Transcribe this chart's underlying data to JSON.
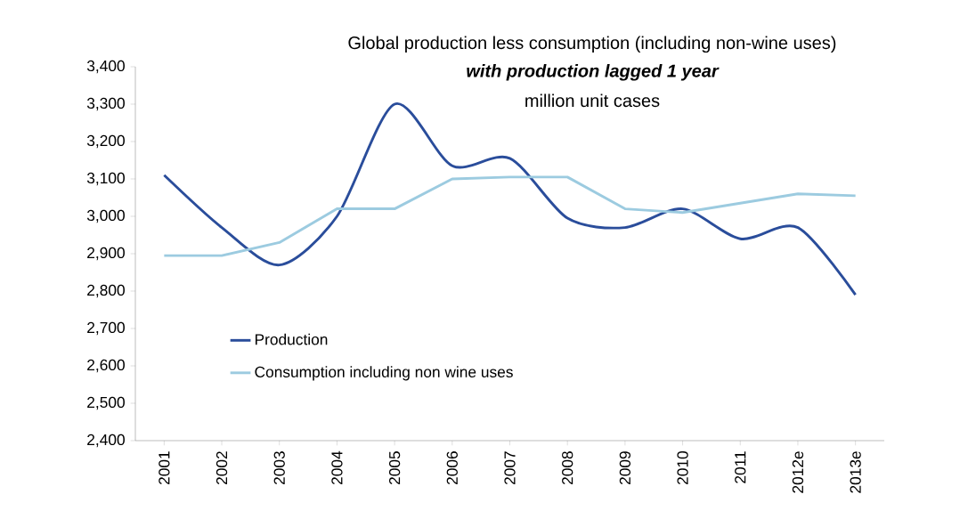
{
  "chart_data": {
    "type": "line",
    "title": "Global production less consumption (including non-wine uses)",
    "subtitle": "with production lagged 1 year",
    "annotations": [
      "million unit cases"
    ],
    "categories": [
      "2001",
      "2002",
      "2003",
      "2004",
      "2005",
      "2006",
      "2007",
      "2008",
      "2009",
      "2010",
      "2011",
      "2012e",
      "2013e"
    ],
    "series": [
      {
        "name": "Production",
        "color": "#2a4d9b",
        "values": [
          3110,
          2970,
          2870,
          3000,
          3300,
          3135,
          3155,
          2995,
          2970,
          3020,
          2940,
          2970,
          2790
        ]
      },
      {
        "name": "Consumption including non wine uses",
        "color": "#9ccbe0",
        "values": [
          2895,
          2895,
          2930,
          3020,
          3020,
          3100,
          3105,
          3105,
          3020,
          3010,
          3035,
          3060,
          3055
        ]
      }
    ],
    "ylim": [
      2400,
      3400
    ],
    "yticks": [
      {
        "value": 2400,
        "label": "2,400"
      },
      {
        "value": 2500,
        "label": "2,500"
      },
      {
        "value": 2600,
        "label": "2,600"
      },
      {
        "value": 2700,
        "label": "2,700"
      },
      {
        "value": 2800,
        "label": "2,800"
      },
      {
        "value": 2900,
        "label": "2,900"
      },
      {
        "value": 3000,
        "label": "3,000"
      },
      {
        "value": 3100,
        "label": "3,100"
      },
      {
        "value": 3200,
        "label": "3,200"
      },
      {
        "value": 3300,
        "label": "3,300"
      },
      {
        "value": 3400,
        "label": "3,400"
      }
    ],
    "grid": false,
    "legend": "bottom left",
    "marker": "none",
    "line_style": "solid"
  }
}
